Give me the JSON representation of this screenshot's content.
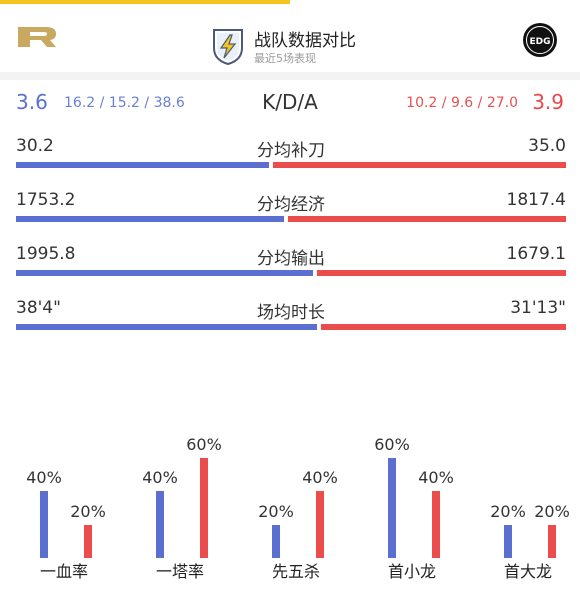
{
  "header": {
    "title": "战队数据对比",
    "subtitle": "最近5场表现",
    "left_team": "RNG",
    "right_team": "EDG",
    "badge_icon": "lightning-shield-icon"
  },
  "kda": {
    "label": "K/D/A",
    "left_score": "3.6",
    "left_detail": "16.2 / 15.2 / 38.6",
    "right_detail": "10.2 / 9.6 / 27.0",
    "right_score": "3.9"
  },
  "stats": [
    {
      "label": "分均补刀",
      "left": "30.2",
      "right": "35.0",
      "left_share": 0.463
    },
    {
      "label": "分均经济",
      "left": "1753.2",
      "right": "1817.4",
      "left_share": 0.491
    },
    {
      "label": "分均输出",
      "left": "1995.8",
      "right": "1679.1",
      "left_share": 0.543
    },
    {
      "label": "场均时长",
      "left": "38'4\"",
      "right": "31'13\"",
      "left_share": 0.551
    }
  ],
  "colors": {
    "left_team": "#5b6fd0",
    "right_team": "#eb4d4d",
    "accent": "#f5c51f"
  },
  "objectives": [
    {
      "label": "一血率",
      "left": "40%",
      "right": "20%",
      "left_value": 40,
      "right_value": 20
    },
    {
      "label": "一塔率",
      "left": "40%",
      "right": "60%",
      "left_value": 40,
      "right_value": 60
    },
    {
      "label": "先五杀",
      "left": "20%",
      "right": "40%",
      "left_value": 20,
      "right_value": 40
    },
    {
      "label": "首小龙",
      "left": "60%",
      "right": "40%",
      "left_value": 60,
      "right_value": 40
    },
    {
      "label": "首大龙",
      "left": "20%",
      "right": "20%",
      "left_value": 20,
      "right_value": 20
    }
  ]
}
